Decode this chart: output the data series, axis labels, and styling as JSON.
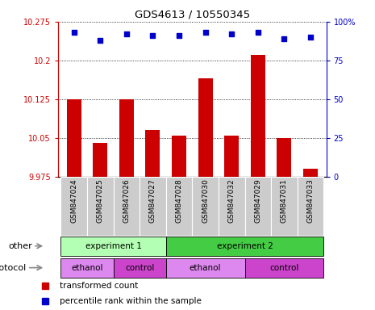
{
  "title": "GDS4613 / 10550345",
  "samples": [
    "GSM847024",
    "GSM847025",
    "GSM847026",
    "GSM847027",
    "GSM847028",
    "GSM847030",
    "GSM847032",
    "GSM847029",
    "GSM847031",
    "GSM847033"
  ],
  "bar_values": [
    10.125,
    10.04,
    10.125,
    10.065,
    10.055,
    10.165,
    10.055,
    10.21,
    10.05,
    9.99
  ],
  "percentile_values": [
    93,
    88,
    92,
    91,
    91,
    93,
    92,
    93,
    89,
    90
  ],
  "ylim": [
    9.975,
    10.275
  ],
  "yticks": [
    9.975,
    10.05,
    10.125,
    10.2,
    10.275
  ],
  "ytick_labels": [
    "9.975",
    "10.05",
    "10.125",
    "10.2",
    "10.275"
  ],
  "right_yticks": [
    0,
    25,
    50,
    75,
    100
  ],
  "right_ytick_labels": [
    "0",
    "25",
    "50",
    "75",
    "100%"
  ],
  "bar_color": "#cc0000",
  "dot_color": "#0000cc",
  "left_axis_color": "#cc0000",
  "right_axis_color": "#0000cc",
  "exp1_color": "#b3ffb3",
  "exp2_color": "#44cc44",
  "ethanol_color": "#dd88ee",
  "control_color": "#cc44cc",
  "xlabel_bar": "transformed count",
  "xlabel_dot": "percentile rank within the sample",
  "other_label": "other",
  "protocol_label": "protocol",
  "gray_color": "#cccccc"
}
